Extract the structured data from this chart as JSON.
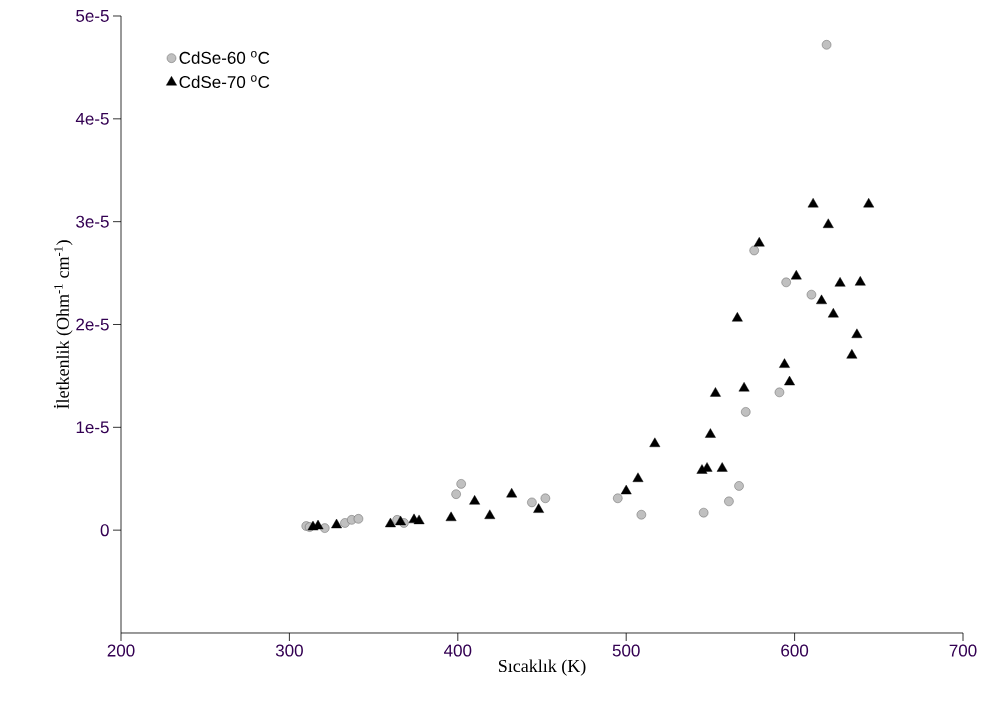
{
  "chart_data": {
    "type": "scatter",
    "xlabel": "Sıcaklık (K)",
    "ylabel": "İletkenlik (Ohm$^{-1}$ cm$^{-1}$)",
    "xlim": [
      200,
      700
    ],
    "xticks": [
      200,
      300,
      400,
      500,
      600,
      700
    ],
    "ylim": [
      -1e-05,
      5e-05
    ],
    "yticks": [
      {
        "value": 0,
        "label": "0"
      },
      {
        "value": 1e-05,
        "label": "1e-5"
      },
      {
        "value": 2e-05,
        "label": "2e-5"
      },
      {
        "value": 3e-05,
        "label": "3e-5"
      },
      {
        "value": 4e-05,
        "label": "4e-5"
      },
      {
        "value": 5e-05,
        "label": "5e-5"
      }
    ],
    "legend": "top left",
    "grid": false,
    "series": [
      {
        "name": "CdSe-60 $^{o}$C",
        "color": "#c0c0c0",
        "marker": "circle",
        "x": [
          310,
          312,
          315,
          318,
          321,
          333,
          337,
          341,
          364,
          368,
          399,
          402,
          444,
          452,
          495,
          509,
          546,
          561,
          567,
          571,
          576,
          591,
          595,
          610,
          619
        ],
        "values": [
          4e-07,
          3e-07,
          null,
          null,
          2e-07,
          7e-07,
          1e-06,
          1.1e-06,
          1e-06,
          7e-07,
          3.5e-06,
          4.5e-06,
          2.7e-06,
          3.1e-06,
          3.1e-06,
          1.5e-06,
          1.7e-06,
          2.8e-06,
          4.3e-06,
          1.15e-05,
          2.72e-05,
          1.34e-05,
          2.41e-05,
          2.29e-05,
          4.72e-05
        ]
      },
      {
        "name": "CdSe-70 $^{o}$C",
        "color": "#000000",
        "marker": "triangle",
        "x": [
          314,
          317,
          328,
          360,
          366,
          374,
          377,
          396,
          410,
          419,
          432,
          448,
          500,
          507,
          517,
          545,
          548,
          550,
          553,
          557,
          566,
          570,
          579,
          594,
          597,
          601,
          611,
          616,
          620,
          623,
          627,
          634,
          637,
          639,
          644
        ],
        "values": [
          3e-07,
          4e-07,
          5e-07,
          6e-07,
          8e-07,
          1e-06,
          9e-07,
          1.2e-06,
          2.8e-06,
          1.4e-06,
          3.5e-06,
          2e-06,
          3.8e-06,
          5e-06,
          8.4e-06,
          5.8e-06,
          6e-06,
          9.3e-06,
          1.33e-05,
          6e-06,
          2.06e-05,
          1.38e-05,
          2.79e-05,
          1.61e-05,
          1.44e-05,
          2.47e-05,
          3.17e-05,
          2.23e-05,
          2.97e-05,
          2.1e-05,
          2.4e-05,
          1.7e-05,
          1.9e-05,
          2.41e-05,
          3.17e-05
        ]
      }
    ]
  }
}
